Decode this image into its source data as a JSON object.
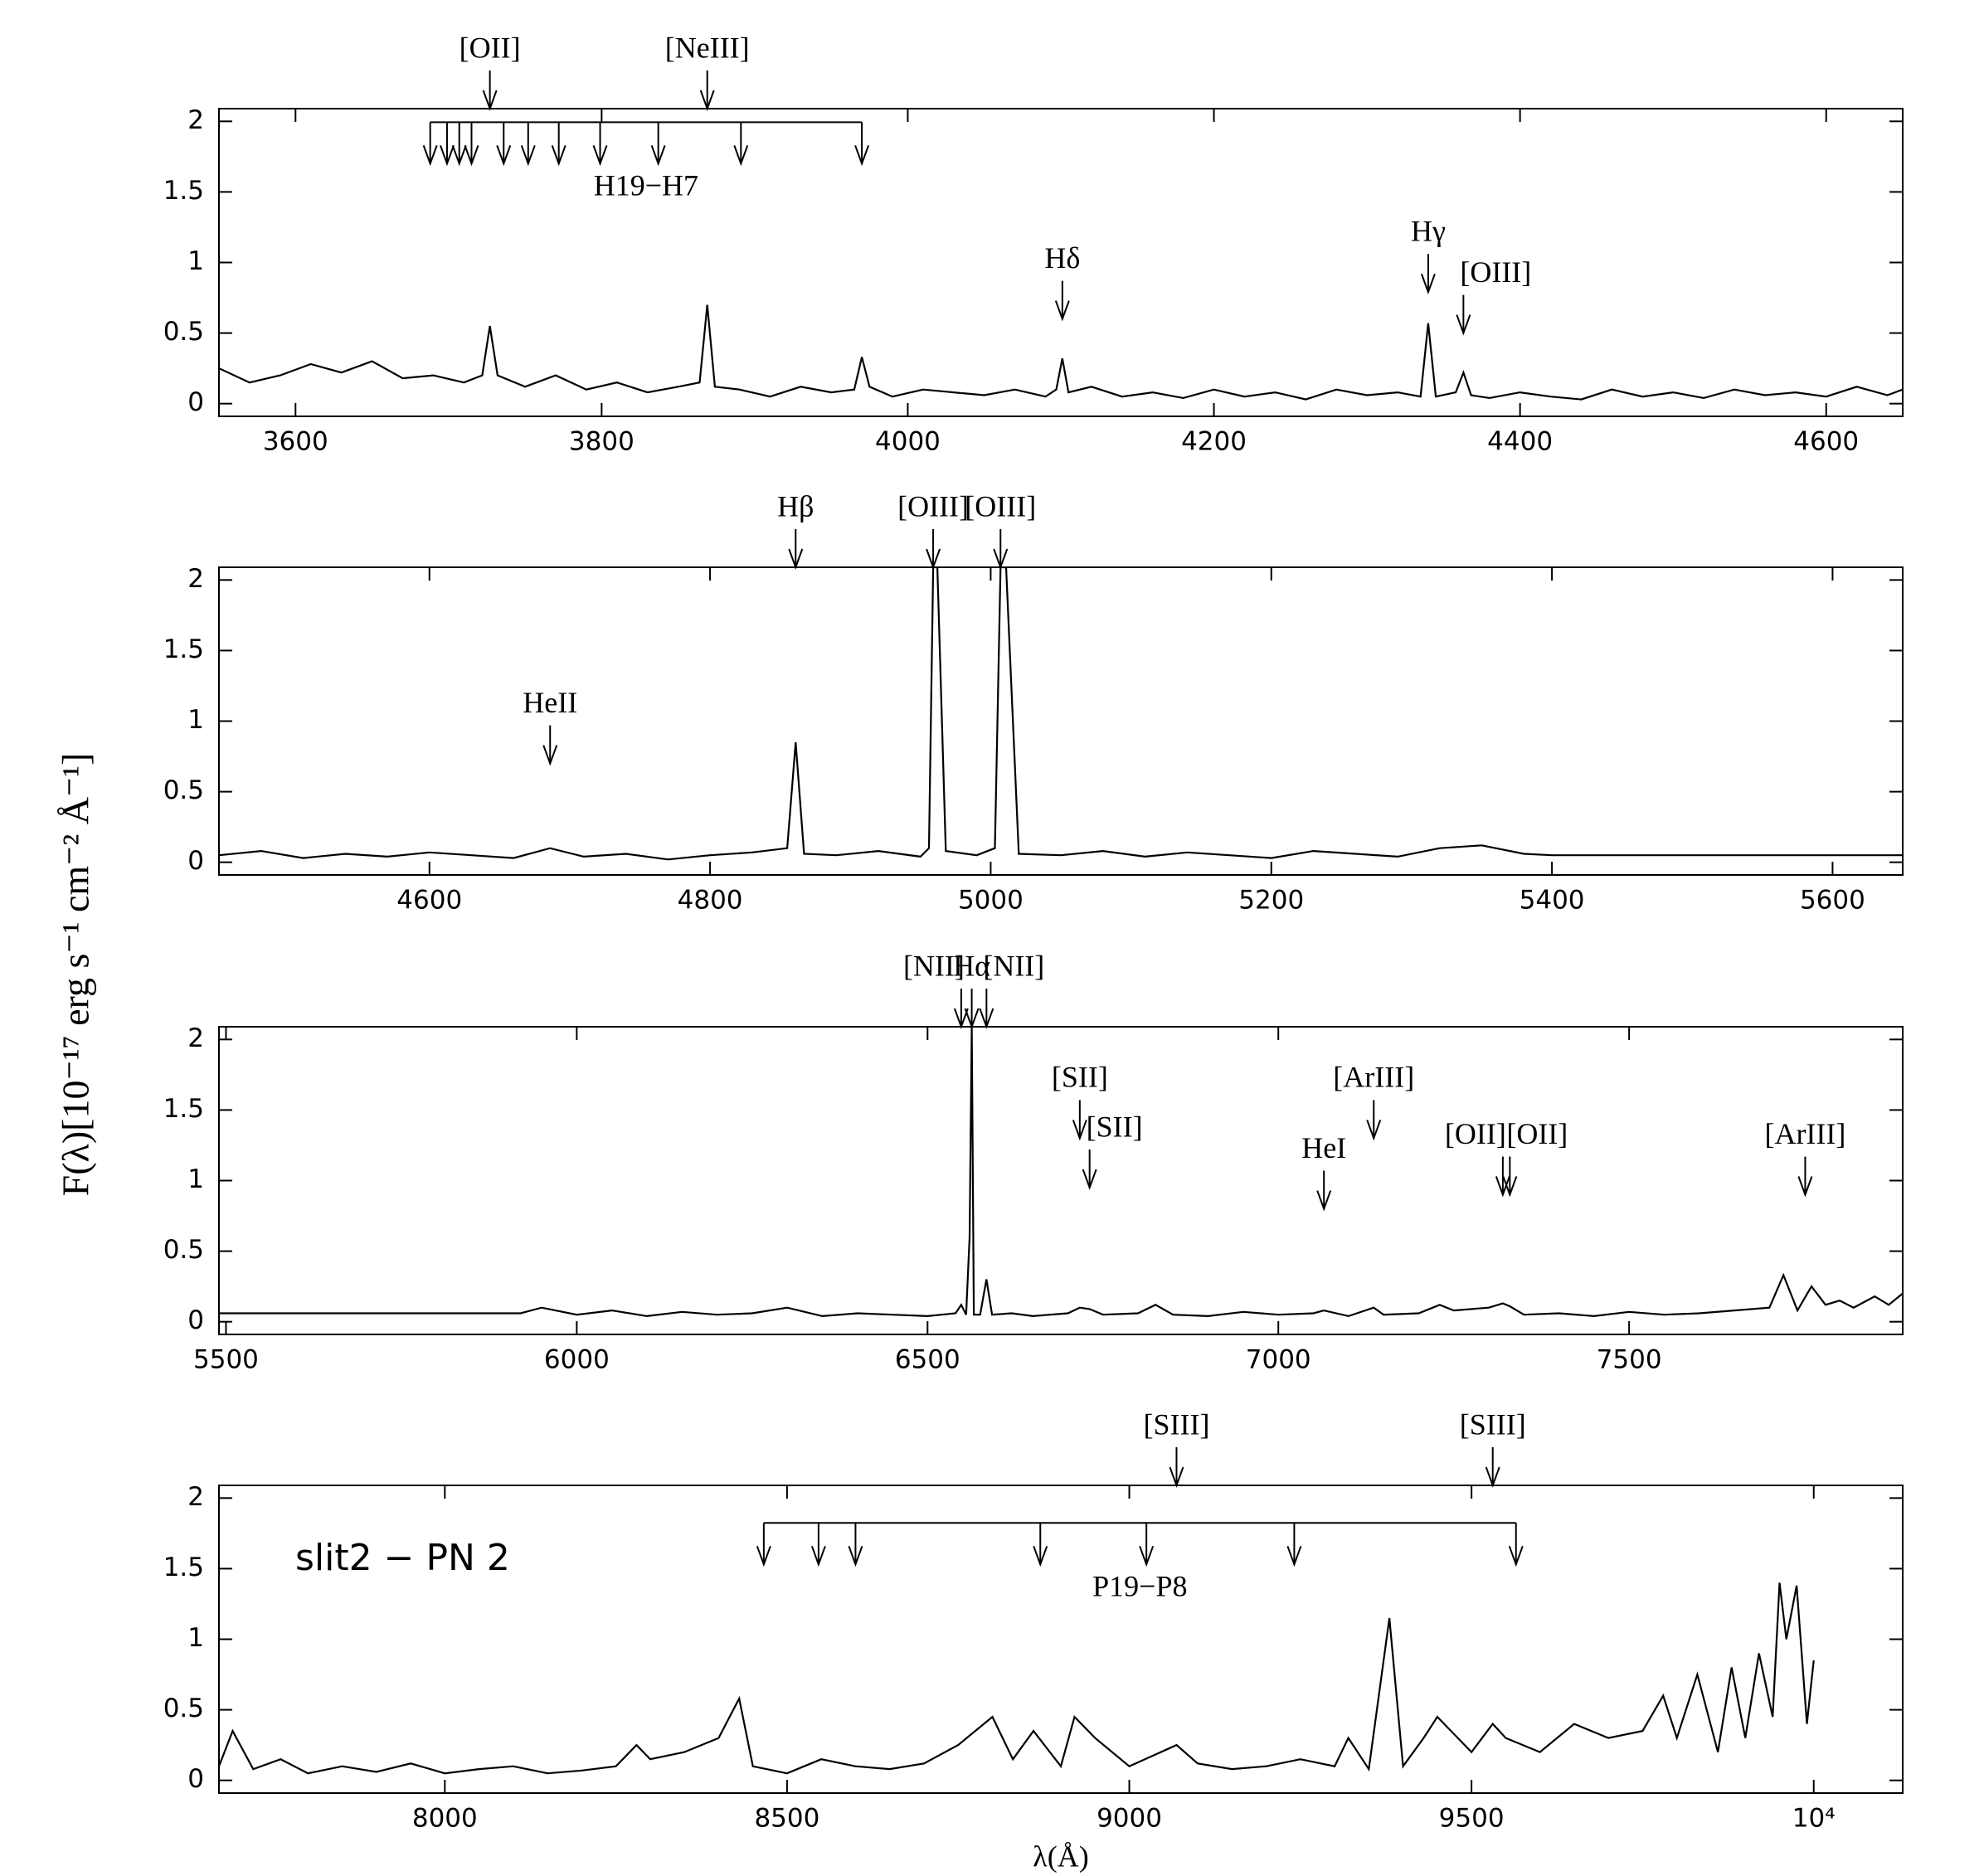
{
  "chart_data": [
    {
      "type": "line",
      "ylabel": "F(λ)[10⁻¹⁷ erg s⁻¹ cm⁻² Å⁻¹]",
      "xlim": [
        3550,
        4650
      ],
      "xticks": [
        3600,
        3800,
        4000,
        4200,
        4400,
        4600
      ],
      "ylim": [
        -0.09,
        2.09
      ],
      "yticks": [
        0,
        0.5,
        1,
        1.5,
        2
      ],
      "x": [
        3550,
        3570,
        3590,
        3610,
        3630,
        3650,
        3670,
        3690,
        3710,
        3722,
        3727,
        3732,
        3750,
        3770,
        3790,
        3810,
        3830,
        3850,
        3864,
        3869,
        3874,
        3890,
        3910,
        3930,
        3950,
        3965,
        3970,
        3975,
        3990,
        4010,
        4030,
        4050,
        4070,
        4090,
        4097,
        4101,
        4105,
        4120,
        4140,
        4160,
        4180,
        4200,
        4220,
        4240,
        4260,
        4280,
        4300,
        4320,
        4335,
        4340,
        4345,
        4358,
        4363,
        4368,
        4380,
        4400,
        4420,
        4440,
        4460,
        4480,
        4500,
        4520,
        4540,
        4560,
        4580,
        4600,
        4620,
        4640,
        4650
      ],
      "series": [
        {
          "color": "#000000",
          "values": [
            0.25,
            0.15,
            0.2,
            0.28,
            0.22,
            0.3,
            0.18,
            0.2,
            0.15,
            0.2,
            0.55,
            0.2,
            0.12,
            0.2,
            0.1,
            0.15,
            0.08,
            0.12,
            0.15,
            0.7,
            0.12,
            0.1,
            0.05,
            0.12,
            0.08,
            0.1,
            0.33,
            0.12,
            0.05,
            0.1,
            0.08,
            0.06,
            0.1,
            0.05,
            0.1,
            0.32,
            0.08,
            0.12,
            0.05,
            0.08,
            0.04,
            0.1,
            0.05,
            0.08,
            0.03,
            0.1,
            0.06,
            0.08,
            0.05,
            0.57,
            0.05,
            0.08,
            0.22,
            0.06,
            0.04,
            0.08,
            0.05,
            0.03,
            0.1,
            0.05,
            0.08,
            0.04,
            0.1,
            0.06,
            0.08,
            0.05,
            0.12,
            0.06,
            0.1
          ]
        }
      ],
      "annotations": [
        {
          "label": "[OII]",
          "x": 3727,
          "y": 2.09
        },
        {
          "label": "[NeIII]",
          "x": 3869,
          "y": 2.09
        },
        {
          "label": "Hδ",
          "x": 4101,
          "y": 0.6
        },
        {
          "label": "Hγ",
          "x": 4340,
          "y": 0.79
        },
        {
          "label": "[OIII]",
          "x": 4363,
          "y": 0.5,
          "align": "start"
        }
      ],
      "groups": [
        {
          "label": "H19−H7",
          "x": [
            3688,
            3699,
            3707,
            3715,
            3736,
            3752,
            3772,
            3799,
            3837,
            3891,
            3970
          ],
          "y": 1.7
        }
      ]
    },
    {
      "type": "line",
      "xlim": [
        4450,
        5650
      ],
      "xticks": [
        4600,
        4800,
        5000,
        5200,
        5400,
        5600
      ],
      "ylim": [
        -0.09,
        2.09
      ],
      "yticks": [
        0,
        0.5,
        1,
        1.5,
        2
      ],
      "x": [
        4450,
        4480,
        4510,
        4540,
        4570,
        4600,
        4630,
        4660,
        4686,
        4710,
        4740,
        4770,
        4800,
        4830,
        4855,
        4861,
        4867,
        4890,
        4920,
        4950,
        4956,
        4959,
        4962,
        4968,
        4990,
        5003,
        5007,
        5011,
        5020,
        5050,
        5080,
        5110,
        5140,
        5170,
        5200,
        5230,
        5260,
        5290,
        5320,
        5350,
        5380,
        5400,
        5650
      ],
      "series": [
        {
          "color": "#000000",
          "values": [
            0.05,
            0.08,
            0.03,
            0.06,
            0.04,
            0.07,
            0.05,
            0.03,
            0.1,
            0.04,
            0.06,
            0.02,
            0.05,
            0.07,
            0.1,
            0.85,
            0.06,
            0.05,
            0.08,
            0.04,
            0.1,
            2.09,
            2.09,
            0.08,
            0.05,
            0.1,
            2.09,
            2.09,
            0.06,
            0.05,
            0.08,
            0.04,
            0.07,
            0.05,
            0.03,
            0.08,
            0.06,
            0.04,
            0.1,
            0.12,
            0.06,
            0.05,
            0.05
          ]
        }
      ],
      "annotations": [
        {
          "label": "HeII",
          "x": 4686,
          "y": 0.7
        },
        {
          "label": "Hβ",
          "x": 4861,
          "y": 2.09
        },
        {
          "label": "[OIII]",
          "x": 4959,
          "y": 2.09
        },
        {
          "label": "[OIII]",
          "x": 5007,
          "y": 2.09
        }
      ]
    },
    {
      "type": "line",
      "xlim": [
        5490,
        7890
      ],
      "xticks": [
        5500,
        6000,
        6500,
        7000,
        7500
      ],
      "ylim": [
        -0.09,
        2.09
      ],
      "yticks": [
        0,
        0.5,
        1,
        1.5,
        2
      ],
      "x": [
        5490,
        5920,
        5950,
        6000,
        6050,
        6100,
        6150,
        6200,
        6250,
        6300,
        6350,
        6400,
        6450,
        6500,
        6540,
        6548,
        6555,
        6560,
        6563,
        6566,
        6575,
        6584,
        6592,
        6620,
        6650,
        6700,
        6717,
        6731,
        6750,
        6800,
        6825,
        6850,
        6900,
        6950,
        7000,
        7050,
        7065,
        7100,
        7136,
        7150,
        7200,
        7230,
        7250,
        7300,
        7320,
        7330,
        7350,
        7400,
        7450,
        7500,
        7550,
        7600,
        7650,
        7700,
        7720,
        7740,
        7760,
        7780,
        7800,
        7820,
        7850,
        7870,
        7890
      ],
      "series": [
        {
          "color": "#000000",
          "values": [
            0.06,
            0.06,
            0.1,
            0.05,
            0.08,
            0.04,
            0.07,
            0.05,
            0.06,
            0.1,
            0.04,
            0.06,
            0.05,
            0.04,
            0.06,
            0.12,
            0.05,
            0.6,
            2.09,
            0.05,
            0.05,
            0.3,
            0.05,
            0.06,
            0.04,
            0.06,
            0.1,
            0.09,
            0.05,
            0.06,
            0.12,
            0.05,
            0.04,
            0.07,
            0.05,
            0.06,
            0.08,
            0.04,
            0.1,
            0.05,
            0.06,
            0.12,
            0.08,
            0.1,
            0.13,
            0.11,
            0.05,
            0.06,
            0.04,
            0.07,
            0.05,
            0.06,
            0.08,
            0.1,
            0.33,
            0.08,
            0.25,
            0.12,
            0.15,
            0.1,
            0.18,
            0.12,
            0.2
          ]
        }
      ],
      "annotations": [
        {
          "label": "[NII]",
          "x": 6548,
          "y": 2.09,
          "align": "end"
        },
        {
          "label": "Hα",
          "x": 6563,
          "y": 2.09
        },
        {
          "label": "[NII]",
          "x": 6584,
          "y": 2.09,
          "align": "start"
        },
        {
          "label": "[SII]",
          "x": 6717,
          "y": 1.3
        },
        {
          "label": "[SII]",
          "x": 6731,
          "y": 0.95,
          "align": "start"
        },
        {
          "label": "HeI",
          "x": 7065,
          "y": 0.8
        },
        {
          "label": "[ArIII]",
          "x": 7136,
          "y": 1.3
        },
        {
          "label": "[OII]",
          "x": 7320,
          "y": 0.9,
          "align": "end"
        },
        {
          "label": "[OII]",
          "x": 7330,
          "y": 0.9,
          "align": "start"
        },
        {
          "label": "[ArIII]",
          "x": 7751,
          "y": 0.9
        }
      ]
    },
    {
      "type": "line",
      "xlabel": "λ(Å)",
      "note": "slit2 − PN 2",
      "xlim": [
        7670,
        10130
      ],
      "xticks": [
        8000,
        8500,
        9000,
        9500,
        {
          "value": 10000,
          "label": "10⁴"
        }
      ],
      "ylim": [
        -0.09,
        2.09
      ],
      "yticks": [
        0,
        0.5,
        1,
        1.5,
        2
      ],
      "x": [
        7670,
        7690,
        7720,
        7760,
        7800,
        7850,
        7900,
        7950,
        8000,
        8050,
        8100,
        8150,
        8200,
        8250,
        8280,
        8300,
        8350,
        8400,
        8430,
        8450,
        8500,
        8550,
        8600,
        8650,
        8700,
        8750,
        8800,
        8830,
        8860,
        8900,
        8920,
        8950,
        9000,
        9069,
        9100,
        9150,
        9200,
        9250,
        9300,
        9320,
        9350,
        9380,
        9400,
        9430,
        9450,
        9500,
        9531,
        9550,
        9600,
        9650,
        9700,
        9750,
        9780,
        9800,
        9830,
        9860,
        9880,
        9900,
        9920,
        9940,
        9950,
        9960,
        9975,
        9990,
        10000
      ],
      "series": [
        {
          "color": "#000000",
          "values": [
            0.1,
            0.35,
            0.08,
            0.15,
            0.05,
            0.1,
            0.06,
            0.12,
            0.05,
            0.08,
            0.1,
            0.05,
            0.07,
            0.1,
            0.25,
            0.15,
            0.2,
            0.3,
            0.58,
            0.1,
            0.05,
            0.15,
            0.1,
            0.08,
            0.12,
            0.25,
            0.45,
            0.15,
            0.35,
            0.1,
            0.45,
            0.3,
            0.1,
            0.25,
            0.12,
            0.08,
            0.1,
            0.15,
            0.1,
            0.3,
            0.08,
            1.15,
            0.1,
            0.3,
            0.45,
            0.2,
            0.4,
            0.3,
            0.2,
            0.4,
            0.3,
            0.35,
            0.6,
            0.3,
            0.75,
            0.2,
            0.8,
            0.3,
            0.9,
            0.45,
            1.4,
            1.0,
            1.38,
            0.4,
            0.85
          ]
        }
      ],
      "annotations": [
        {
          "label": "[SIII]",
          "x": 9069,
          "y": 2.09
        },
        {
          "label": "[SIII]",
          "x": 9531,
          "y": 2.09
        }
      ],
      "groups": [
        {
          "label": "P19−P8",
          "x": [
            8466,
            8546,
            8600,
            8870,
            9025,
            9241,
            9565
          ],
          "y": 1.53
        }
      ]
    }
  ]
}
